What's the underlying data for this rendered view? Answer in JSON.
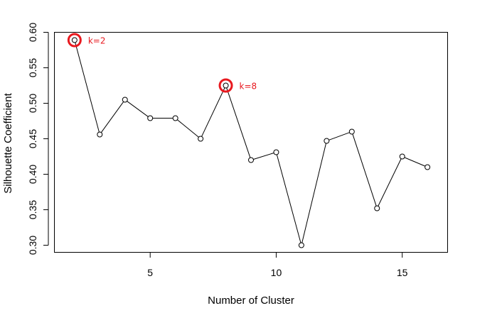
{
  "chart_data": {
    "type": "line",
    "title": "",
    "xlabel": "Number of Cluster",
    "ylabel": "Silhouette Coefficient",
    "x": [
      2,
      3,
      4,
      5,
      6,
      7,
      8,
      9,
      10,
      11,
      12,
      13,
      14,
      15,
      16
    ],
    "series": [
      {
        "values": [
          0.589,
          0.456,
          0.505,
          0.479,
          0.479,
          0.45,
          0.525,
          0.42,
          0.431,
          0.3,
          0.447,
          0.46,
          0.352,
          0.425,
          0.41
        ]
      }
    ],
    "xlim": [
      1.2,
      16.8
    ],
    "ylim": [
      0.29,
      0.6
    ],
    "xticks": [
      5,
      10,
      15
    ],
    "yticks": [
      "0.30",
      "0.35",
      "0.40",
      "0.45",
      "0.50",
      "0.55",
      "0.60"
    ],
    "grid": false,
    "markers": "open-circle",
    "annotations": [
      {
        "x": 2,
        "text": "k=2"
      },
      {
        "x": 8,
        "text": "k=8"
      }
    ],
    "highlight_color": "#e8191f",
    "line_color": "#000000"
  }
}
